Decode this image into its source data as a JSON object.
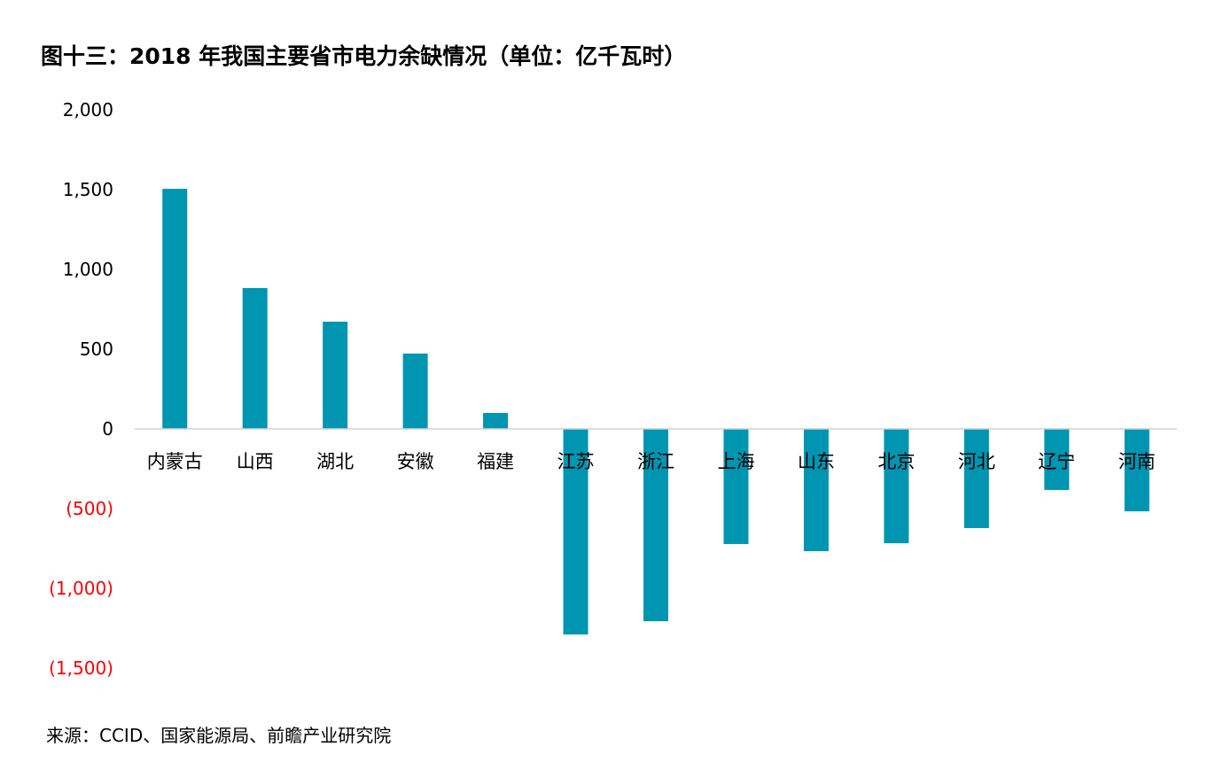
{
  "chart_data": {
    "type": "bar",
    "title": "图十三：2018 年我国主要省市电力余缺情况（单位：亿千瓦时）",
    "xlabel": "",
    "ylabel": "",
    "ylim": [
      -1500,
      2000
    ],
    "yticks": [
      2000,
      1500,
      1000,
      500,
      0,
      -500,
      -1000,
      -1500
    ],
    "ytick_labels": [
      "2,000",
      "1,500",
      "1,000",
      "500",
      "0",
      "(500)",
      "(1,000)",
      "(1,500)"
    ],
    "categories": [
      "内蒙古",
      "山西",
      "湖北",
      "安徽",
      "福建",
      "江苏",
      "浙江",
      "上海",
      "山东",
      "北京",
      "河北",
      "辽宁",
      "河南"
    ],
    "values": [
      1505,
      883,
      672,
      472,
      100,
      -1289,
      -1206,
      -722,
      -767,
      -717,
      -622,
      -383,
      -517
    ],
    "grid": false,
    "bar_color": "#0095B1",
    "negative_label_color": "#FF0000",
    "source": "来源：CCID、国家能源局、前瞻产业研究院"
  }
}
